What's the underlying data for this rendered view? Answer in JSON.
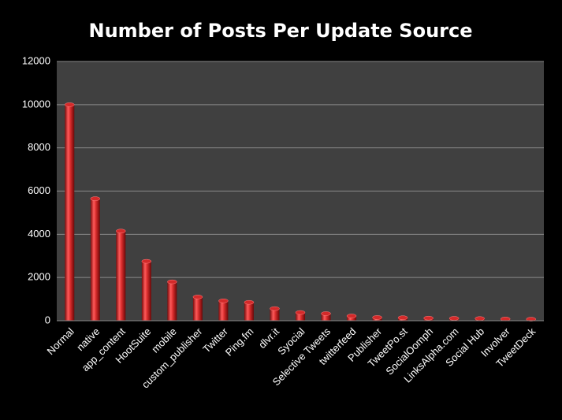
{
  "chart_data": {
    "type": "bar",
    "title": "Number of Posts Per Update Source",
    "categories": [
      "Normal",
      "native",
      "app_content",
      "HootSuite",
      "mobile",
      "custom_publisher",
      "Twitter",
      "Ping.fm",
      "dlvr.it",
      "Syocial",
      "Selective Tweets",
      "twitterfeed",
      "Publisher",
      "TweetPo.st",
      "SocialOomph",
      "LinksAlpha.com",
      "Social Hub",
      "Involver",
      "TweetDeck"
    ],
    "values": [
      10000,
      5650,
      4150,
      2750,
      1800,
      1100,
      920,
      850,
      560,
      380,
      330,
      220,
      150,
      140,
      120,
      110,
      100,
      80,
      70
    ],
    "color": "#d42a2a",
    "ylim": [
      0,
      12000
    ],
    "yticks": [
      0,
      2000,
      4000,
      6000,
      8000,
      10000,
      12000
    ],
    "grid": true
  }
}
